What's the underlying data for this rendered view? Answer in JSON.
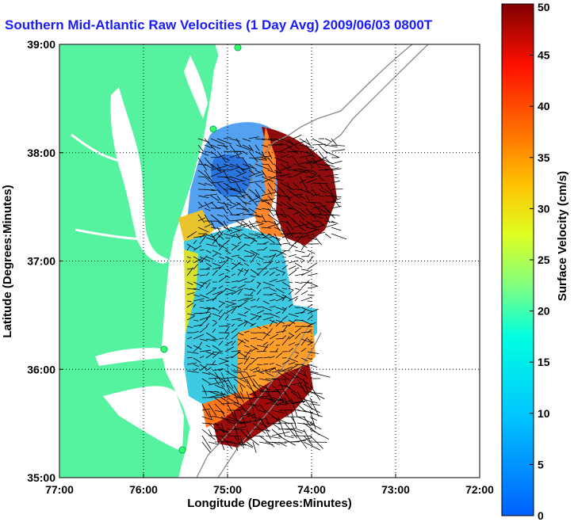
{
  "chart_data": {
    "type": "heatmap",
    "title": "Southern Mid-Atlantic Raw Velocities (1 Day Avg) 2009/06/03 0800",
    "title_suffix": "T",
    "xlabel": "Longitude (Degrees:Minutes)",
    "ylabel": "Latitude (Degrees:Minutes)",
    "x_ticks": [
      "77:00",
      "76:00",
      "75:00",
      "74:00",
      "73:00",
      "72:00"
    ],
    "y_ticks": [
      "39:00",
      "38:00",
      "37:00",
      "36:00",
      "35:00"
    ],
    "xlim": [
      -77,
      -72
    ],
    "ylim": [
      35,
      39
    ],
    "grid": true,
    "colorbar": {
      "label": "Surface Velocity (cm/s)",
      "range": [
        0,
        50
      ],
      "ticks": [
        0,
        5,
        10,
        15,
        20,
        25,
        30,
        35,
        40,
        45,
        50
      ],
      "colormap": "jet"
    },
    "colors": {
      "land": "#55f2a0",
      "title": "#1a1aff",
      "vectors": "#000000",
      "bathymetry": "#888888"
    }
  }
}
